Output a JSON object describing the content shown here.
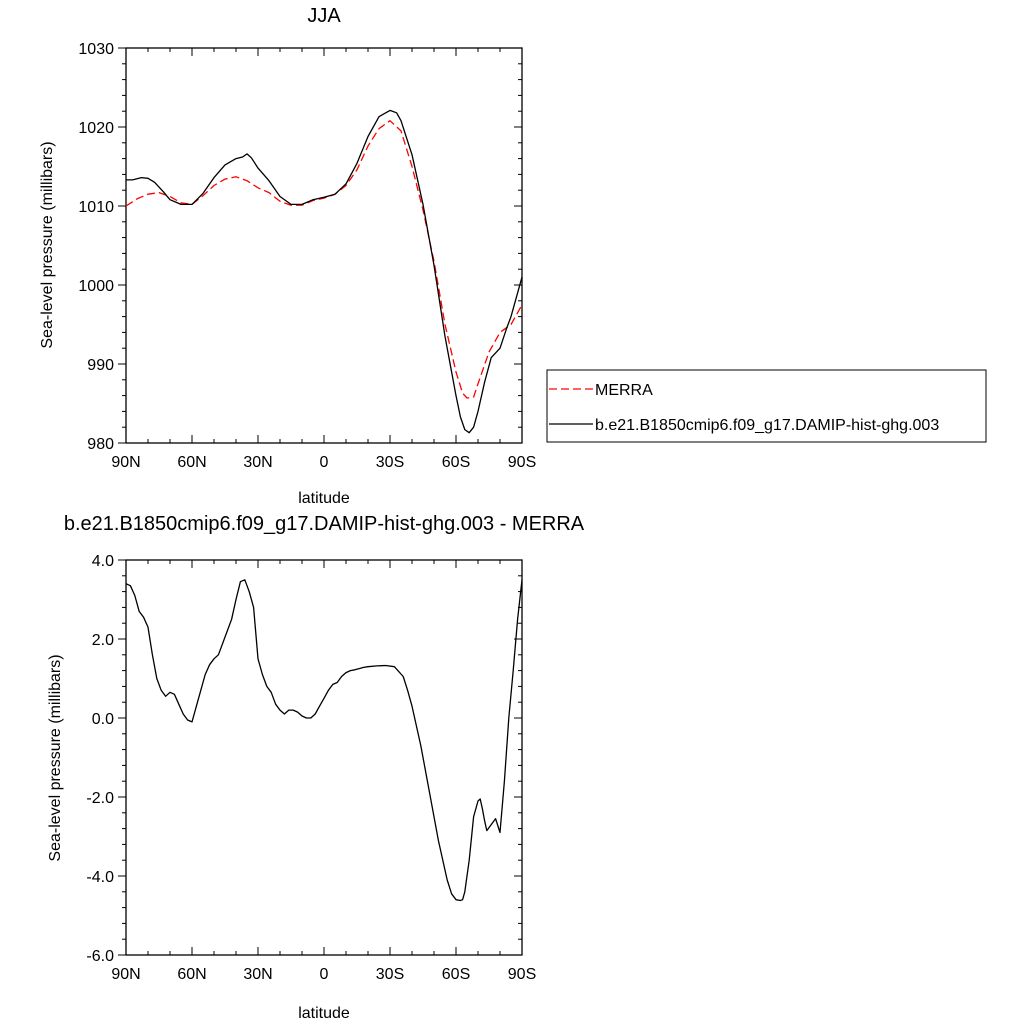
{
  "chart_data": [
    {
      "type": "line",
      "title": "JJA",
      "xlabel": "latitude",
      "ylabel": "Sea-level pressure (millibars)",
      "xlim": [
        90,
        -90
      ],
      "ylim": [
        980,
        1030
      ],
      "xticks": [
        {
          "value": 90,
          "label": "90N"
        },
        {
          "value": 60,
          "label": "60N"
        },
        {
          "value": 30,
          "label": "30N"
        },
        {
          "value": 0,
          "label": "0"
        },
        {
          "value": -30,
          "label": "30S"
        },
        {
          "value": -60,
          "label": "60S"
        },
        {
          "value": -90,
          "label": "90S"
        }
      ],
      "yticks": [
        {
          "value": 980,
          "label": "980"
        },
        {
          "value": 990,
          "label": "990"
        },
        {
          "value": 1000,
          "label": "1000"
        },
        {
          "value": 1010,
          "label": "1010"
        },
        {
          "value": 1020,
          "label": "1020"
        },
        {
          "value": 1030,
          "label": "1030"
        }
      ],
      "legend": "outside-right",
      "series": [
        {
          "name": "MERRA",
          "color": "#ff0000",
          "dash": true,
          "x": [
            90,
            85,
            80,
            75,
            70,
            65,
            60,
            55,
            50,
            45,
            40,
            35,
            30,
            25,
            20,
            15,
            10,
            5,
            0,
            -5,
            -10,
            -15,
            -20,
            -25,
            -30,
            -35,
            -40,
            -45,
            -50,
            -55,
            -60,
            -63,
            -65,
            -68,
            -70,
            -75,
            -80,
            -85,
            -90
          ],
          "y": [
            1010.0,
            1010.9,
            1011.5,
            1011.7,
            1011.2,
            1010.4,
            1010.2,
            1011.3,
            1012.6,
            1013.4,
            1013.7,
            1013.2,
            1012.3,
            1011.7,
            1010.6,
            1010.1,
            1010.1,
            1010.7,
            1011.0,
            1011.5,
            1012.6,
            1014.6,
            1017.6,
            1019.8,
            1020.8,
            1019.5,
            1015.0,
            1009.5,
            1003.0,
            995.0,
            989.0,
            986.3,
            985.7,
            985.8,
            987.5,
            991.5,
            994.0,
            995.0,
            997.5
          ]
        },
        {
          "name": "b.e21.B1850cmip6.f09_g17.DAMIP-hist-ghg.003",
          "color": "#000000",
          "dash": false,
          "x": [
            90,
            87,
            83,
            80,
            77,
            73,
            70,
            65,
            60,
            55,
            50,
            45,
            40,
            37,
            35,
            33,
            30,
            25,
            20,
            15,
            10,
            5,
            0,
            -5,
            -10,
            -15,
            -20,
            -25,
            -30,
            -33,
            -35,
            -40,
            -45,
            -50,
            -55,
            -60,
            -62,
            -64,
            -66,
            -68,
            -70,
            -73,
            -76,
            -80,
            -83,
            -85,
            -88,
            -90
          ],
          "y": [
            1013.3,
            1013.3,
            1013.6,
            1013.5,
            1013.0,
            1011.8,
            1010.8,
            1010.2,
            1010.2,
            1011.6,
            1013.6,
            1015.2,
            1016.0,
            1016.2,
            1016.6,
            1016.1,
            1014.8,
            1013.2,
            1011.2,
            1010.2,
            1010.2,
            1010.8,
            1011.1,
            1011.5,
            1012.8,
            1015.4,
            1018.8,
            1021.3,
            1022.1,
            1021.8,
            1020.8,
            1016.5,
            1010.2,
            1002.5,
            993.5,
            986.0,
            983.3,
            981.7,
            981.3,
            982.0,
            984.0,
            987.7,
            990.8,
            992.0,
            994.5,
            996.0,
            999.0,
            1001.0
          ]
        }
      ]
    },
    {
      "type": "line",
      "title": "b.e21.B1850cmip6.f09_g17.DAMIP-hist-ghg.003 - MERRA",
      "xlabel": "latitude",
      "ylabel": "Sea-level pressure (millibars)",
      "xlim": [
        90,
        -90
      ],
      "ylim": [
        -6,
        4
      ],
      "xticks": [
        {
          "value": 90,
          "label": "90N"
        },
        {
          "value": 60,
          "label": "60N"
        },
        {
          "value": 30,
          "label": "30N"
        },
        {
          "value": 0,
          "label": "0"
        },
        {
          "value": -30,
          "label": "30S"
        },
        {
          "value": -60,
          "label": "60S"
        },
        {
          "value": -90,
          "label": "90S"
        }
      ],
      "yticks": [
        {
          "value": -6,
          "label": "-6.0"
        },
        {
          "value": -4,
          "label": "-4.0"
        },
        {
          "value": -2,
          "label": "-2.0"
        },
        {
          "value": 0,
          "label": "0.0"
        },
        {
          "value": 2,
          "label": "2.0"
        },
        {
          "value": 4,
          "label": "4.0"
        }
      ],
      "series": [
        {
          "color": "#000000",
          "dash": false,
          "x": [
            90,
            88,
            86,
            84,
            82,
            80,
            78,
            76,
            74,
            72,
            70,
            68,
            66,
            64,
            62,
            60,
            58,
            56,
            54,
            52,
            50,
            48,
            46,
            44,
            42,
            40,
            38,
            36,
            35,
            34,
            32,
            30,
            28,
            26,
            24,
            22,
            20,
            18,
            16,
            14,
            12,
            10,
            8,
            6,
            4,
            2,
            0,
            -2,
            -4,
            -6,
            -8,
            -10,
            -12,
            -14,
            -16,
            -18,
            -20,
            -24,
            -28,
            -32,
            -36,
            -38,
            -40,
            -44,
            -48,
            -52,
            -56,
            -58,
            -60,
            -62,
            -63,
            -64,
            -66,
            -68,
            -70,
            -71,
            -72,
            -73,
            -74,
            -76,
            -78,
            -80,
            -82,
            -84,
            -86,
            -88,
            -90
          ],
          "y": [
            3.4,
            3.35,
            3.1,
            2.7,
            2.55,
            2.3,
            1.6,
            1.0,
            0.7,
            0.55,
            0.65,
            0.6,
            0.35,
            0.1,
            -0.05,
            -0.1,
            0.3,
            0.7,
            1.1,
            1.35,
            1.5,
            1.6,
            1.9,
            2.2,
            2.5,
            3.0,
            3.45,
            3.5,
            3.35,
            3.2,
            2.8,
            1.5,
            1.1,
            0.8,
            0.65,
            0.35,
            0.2,
            0.1,
            0.2,
            0.2,
            0.15,
            0.05,
            0.0,
            0.0,
            0.1,
            0.3,
            0.5,
            0.7,
            0.85,
            0.9,
            1.05,
            1.15,
            1.2,
            1.22,
            1.25,
            1.28,
            1.3,
            1.32,
            1.33,
            1.3,
            1.05,
            0.7,
            0.3,
            -0.7,
            -1.9,
            -3.1,
            -4.1,
            -4.45,
            -4.6,
            -4.62,
            -4.6,
            -4.4,
            -3.6,
            -2.5,
            -2.1,
            -2.05,
            -2.3,
            -2.6,
            -2.85,
            -2.7,
            -2.55,
            -2.9,
            -1.6,
            0.0,
            1.2,
            2.5,
            3.5
          ]
        }
      ]
    }
  ]
}
